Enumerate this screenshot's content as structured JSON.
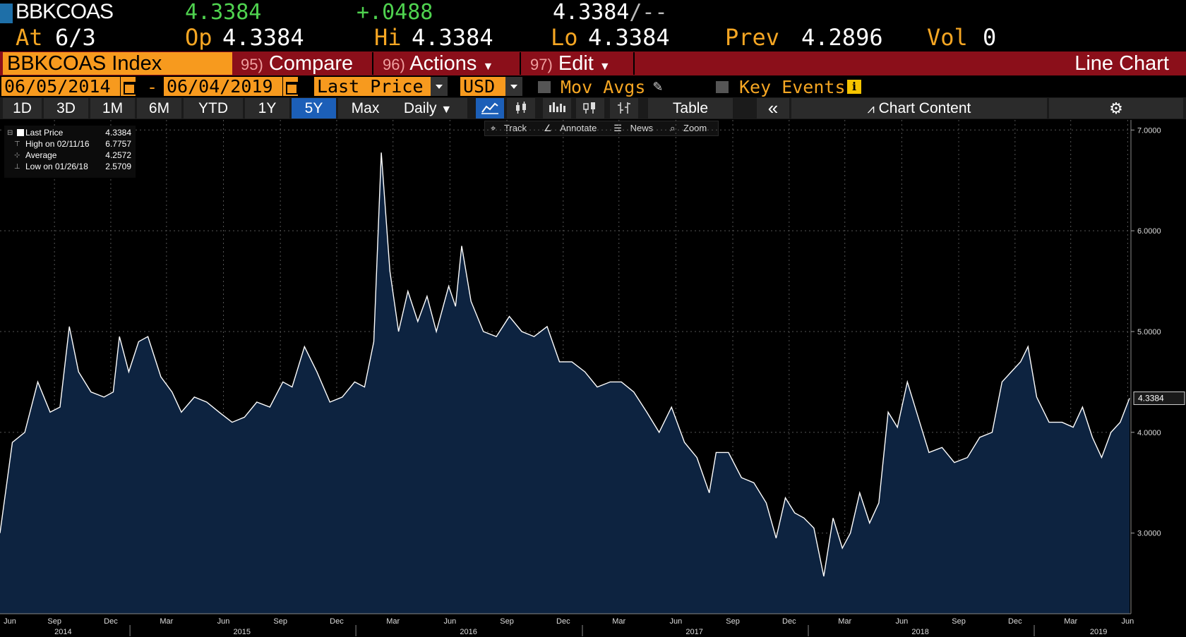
{
  "header": {
    "ticker": "BBKCOAS",
    "last": "4.3384",
    "change": "+.0488",
    "bid": "4.3384",
    "ask_sep": "/--",
    "at_label": "At",
    "at_value": "6/3",
    "op_label": "Op",
    "op_value": "4.3384",
    "hi_label": "Hi",
    "hi_value": "4.3384",
    "lo_label": "Lo",
    "lo_value": "4.3384",
    "prev_label": "Prev",
    "prev_value": "4.2896",
    "vol_label": "Vol",
    "vol_value": "0"
  },
  "toolbar1": {
    "index_label": "BBKCOAS Index",
    "compare_num": "95)",
    "compare": "Compare",
    "actions_num": "96)",
    "actions": "Actions",
    "edit_num": "97)",
    "edit": "Edit",
    "chart_type": "Line Chart"
  },
  "toolbar2": {
    "start_date": "06/05/2014",
    "dash": "-",
    "end_date": "06/04/2019",
    "field": "Last Price",
    "currency": "USD",
    "mov_avgs": "Mov Avgs",
    "key_events": "Key Events"
  },
  "toolbar3": {
    "ranges": [
      "1D",
      "3D",
      "1M",
      "6M",
      "YTD",
      "1Y",
      "5Y",
      "Max"
    ],
    "active_range": "5Y",
    "period": "Daily",
    "table": "Table",
    "collapse": "«",
    "chart_content": "Chart Content"
  },
  "subtools": {
    "track": "Track",
    "annotate": "Annotate",
    "news": "News",
    "zoom": "Zoom"
  },
  "legend": {
    "last_label": "Last Price",
    "last_value": "4.3384",
    "high_label": "High on 02/11/16",
    "high_value": "6.7757",
    "avg_label": "Average",
    "avg_value": "4.2572",
    "low_label": "Low on 01/26/18",
    "low_value": "2.5709"
  },
  "colors": {
    "fill": "#0d2340",
    "line": "#ffffff",
    "orange": "#f79a1e",
    "red": "#8b0f1a",
    "green": "#4fd24f",
    "blue": "#1c5fb8"
  },
  "chart_data": {
    "type": "area",
    "series": [
      {
        "name": "Last Price",
        "points": [
          [
            "2014-06-05",
            3.0
          ],
          [
            "2014-06-25",
            3.9
          ],
          [
            "2014-07-15",
            4.0
          ],
          [
            "2014-08-05",
            4.5
          ],
          [
            "2014-08-25",
            4.2
          ],
          [
            "2014-09-10",
            4.25
          ],
          [
            "2014-09-25",
            5.05
          ],
          [
            "2014-10-10",
            4.6
          ],
          [
            "2014-10-30",
            4.4
          ],
          [
            "2014-11-20",
            4.35
          ],
          [
            "2014-12-05",
            4.4
          ],
          [
            "2014-12-15",
            4.95
          ],
          [
            "2014-12-30",
            4.6
          ],
          [
            "2015-01-15",
            4.9
          ],
          [
            "2015-01-30",
            4.95
          ],
          [
            "2015-02-20",
            4.55
          ],
          [
            "2015-03-10",
            4.4
          ],
          [
            "2015-03-25",
            4.2
          ],
          [
            "2015-04-15",
            4.35
          ],
          [
            "2015-05-05",
            4.3
          ],
          [
            "2015-05-25",
            4.2
          ],
          [
            "2015-06-15",
            4.1
          ],
          [
            "2015-07-05",
            4.15
          ],
          [
            "2015-07-25",
            4.3
          ],
          [
            "2015-08-15",
            4.25
          ],
          [
            "2015-09-05",
            4.5
          ],
          [
            "2015-09-20",
            4.45
          ],
          [
            "2015-10-10",
            4.85
          ],
          [
            "2015-10-30",
            4.6
          ],
          [
            "2015-11-20",
            4.3
          ],
          [
            "2015-12-10",
            4.35
          ],
          [
            "2015-12-30",
            4.5
          ],
          [
            "2016-01-15",
            4.45
          ],
          [
            "2016-01-30",
            4.9
          ],
          [
            "2016-02-11",
            6.7757
          ],
          [
            "2016-02-25",
            5.6
          ],
          [
            "2016-03-10",
            5.0
          ],
          [
            "2016-03-25",
            5.4
          ],
          [
            "2016-04-10",
            5.1
          ],
          [
            "2016-04-25",
            5.35
          ],
          [
            "2016-05-10",
            5.0
          ],
          [
            "2016-05-30",
            5.45
          ],
          [
            "2016-06-10",
            5.25
          ],
          [
            "2016-06-20",
            5.85
          ],
          [
            "2016-07-05",
            5.3
          ],
          [
            "2016-07-25",
            5.0
          ],
          [
            "2016-08-15",
            4.95
          ],
          [
            "2016-09-05",
            5.15
          ],
          [
            "2016-09-25",
            5.0
          ],
          [
            "2016-10-15",
            4.95
          ],
          [
            "2016-11-05",
            5.05
          ],
          [
            "2016-11-25",
            4.7
          ],
          [
            "2016-12-15",
            4.7
          ],
          [
            "2017-01-05",
            4.6
          ],
          [
            "2017-01-25",
            4.45
          ],
          [
            "2017-02-15",
            4.5
          ],
          [
            "2017-03-05",
            4.5
          ],
          [
            "2017-03-25",
            4.4
          ],
          [
            "2017-04-15",
            4.2
          ],
          [
            "2017-05-05",
            4.0
          ],
          [
            "2017-05-25",
            4.25
          ],
          [
            "2017-06-15",
            3.9
          ],
          [
            "2017-07-05",
            3.75
          ],
          [
            "2017-07-25",
            3.4
          ],
          [
            "2017-08-05",
            3.8
          ],
          [
            "2017-08-25",
            3.8
          ],
          [
            "2017-09-15",
            3.55
          ],
          [
            "2017-10-05",
            3.5
          ],
          [
            "2017-10-25",
            3.3
          ],
          [
            "2017-11-10",
            2.95
          ],
          [
            "2017-11-25",
            3.35
          ],
          [
            "2017-12-10",
            3.2
          ],
          [
            "2017-12-25",
            3.15
          ],
          [
            "2018-01-10",
            3.05
          ],
          [
            "2018-01-26",
            2.5709
          ],
          [
            "2018-02-10",
            3.15
          ],
          [
            "2018-02-25",
            2.85
          ],
          [
            "2018-03-10",
            3.0
          ],
          [
            "2018-03-25",
            3.4
          ],
          [
            "2018-04-10",
            3.1
          ],
          [
            "2018-04-25",
            3.3
          ],
          [
            "2018-05-10",
            4.2
          ],
          [
            "2018-05-25",
            4.05
          ],
          [
            "2018-06-10",
            4.5
          ],
          [
            "2018-06-25",
            4.2
          ],
          [
            "2018-07-15",
            3.8
          ],
          [
            "2018-08-05",
            3.85
          ],
          [
            "2018-08-25",
            3.7
          ],
          [
            "2018-09-15",
            3.75
          ],
          [
            "2018-10-05",
            3.95
          ],
          [
            "2018-10-25",
            4.0
          ],
          [
            "2018-11-10",
            4.5
          ],
          [
            "2018-11-25",
            4.6
          ],
          [
            "2018-12-10",
            4.7
          ],
          [
            "2018-12-22",
            4.85
          ],
          [
            "2019-01-05",
            4.35
          ],
          [
            "2019-01-25",
            4.1
          ],
          [
            "2019-02-15",
            4.1
          ],
          [
            "2019-03-05",
            4.05
          ],
          [
            "2019-03-20",
            4.25
          ],
          [
            "2019-04-05",
            3.95
          ],
          [
            "2019-04-20",
            3.75
          ],
          [
            "2019-05-05",
            4.0
          ],
          [
            "2019-05-20",
            4.1
          ],
          [
            "2019-06-04",
            4.3384
          ]
        ]
      }
    ],
    "ylim": [
      2.2,
      7.1
    ],
    "yticks": [
      3.0,
      4.0,
      5.0,
      6.0,
      7.0
    ],
    "ytick_labels": [
      "3.0000",
      "4.0000",
      "5.0000",
      "6.0000",
      "7.0000"
    ],
    "last_value_label": "4.3384",
    "x_month_ticks": [
      [
        "2014-06-01",
        "Jun"
      ],
      [
        "2014-09-01",
        "Sep"
      ],
      [
        "2014-12-01",
        "Dec"
      ],
      [
        "2015-03-01",
        "Mar"
      ],
      [
        "2015-06-01",
        "Jun"
      ],
      [
        "2015-09-01",
        "Sep"
      ],
      [
        "2015-12-01",
        "Dec"
      ],
      [
        "2016-03-01",
        "Mar"
      ],
      [
        "2016-06-01",
        "Jun"
      ],
      [
        "2016-09-01",
        "Sep"
      ],
      [
        "2016-12-01",
        "Dec"
      ],
      [
        "2017-03-01",
        "Mar"
      ],
      [
        "2017-06-01",
        "Jun"
      ],
      [
        "2017-09-01",
        "Sep"
      ],
      [
        "2017-12-01",
        "Dec"
      ],
      [
        "2018-03-01",
        "Mar"
      ],
      [
        "2018-06-01",
        "Jun"
      ],
      [
        "2018-09-01",
        "Sep"
      ],
      [
        "2018-12-01",
        "Dec"
      ],
      [
        "2019-03-01",
        "Mar"
      ],
      [
        "2019-06-01",
        "Jun"
      ]
    ],
    "x_year_labels": [
      [
        "2014-09-15",
        "2014"
      ],
      [
        "2015-07-01",
        "2015"
      ],
      [
        "2016-07-01",
        "2016"
      ],
      [
        "2017-07-01",
        "2017"
      ],
      [
        "2018-07-01",
        "2018"
      ],
      [
        "2019-04-15",
        "2019"
      ]
    ],
    "x_year_dividers": [
      "2015-01-01",
      "2016-01-01",
      "2017-01-01",
      "2018-01-01",
      "2019-01-01"
    ],
    "grid": true
  }
}
